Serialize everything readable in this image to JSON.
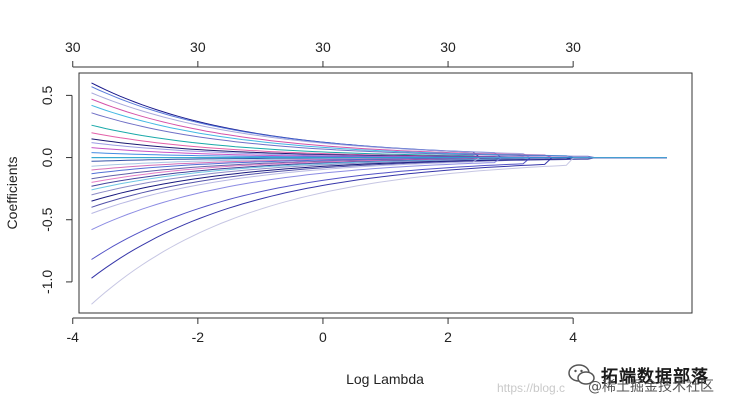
{
  "chart_data": {
    "type": "line",
    "xlabel": "Log Lambda",
    "ylabel": "Coefficients",
    "xlim": [
      -3.9,
      5.9
    ],
    "ylim": [
      -1.25,
      0.68
    ],
    "x_ticks": [
      "-4",
      "-2",
      "0",
      "2",
      "4"
    ],
    "x_tick_values": [
      -4,
      -2,
      0,
      2,
      4
    ],
    "y_ticks": [
      "-1.0",
      "-0.5",
      "0.0",
      "0.5"
    ],
    "y_tick_values": [
      -1.0,
      -0.5,
      0.0,
      0.5
    ],
    "top_ticks": [
      "30",
      "30",
      "30",
      "30",
      "30"
    ],
    "top_tick_values": [
      -4,
      -2,
      0,
      2,
      4
    ],
    "x_range": [
      -3.7,
      5.5
    ],
    "grid": false,
    "legend": "none",
    "series": [
      {
        "color": "#000080",
        "start": 0.6,
        "decay": 0.95
      },
      {
        "color": "#4a6fd8",
        "start": 0.57,
        "decay": 0.92
      },
      {
        "color": "#a0a0d8",
        "start": 0.52,
        "decay": 0.9
      },
      {
        "color": "#d040a0",
        "start": 0.47,
        "decay": 0.96
      },
      {
        "color": "#30b0e0",
        "start": 0.42,
        "decay": 0.98
      },
      {
        "color": "#6060c0",
        "start": 0.36,
        "decay": 1.0
      },
      {
        "color": "#00a0a0",
        "start": 0.26,
        "decay": 1.05
      },
      {
        "color": "#e050a0",
        "start": 0.2,
        "decay": 1.1
      },
      {
        "color": "#000060",
        "start": 0.15,
        "decay": 1.1
      },
      {
        "color": "#9090e0",
        "start": 0.12,
        "decay": 1.15
      },
      {
        "color": "#c040c0",
        "start": 0.08,
        "decay": 1.2
      },
      {
        "color": "#3080e0",
        "start": 0.04,
        "decay": 1.25
      },
      {
        "color": "#20c0c0",
        "start": 0.0,
        "decay": 1.3
      },
      {
        "color": "#2040a0",
        "start": -0.03,
        "decay": 1.2
      },
      {
        "color": "#a0c0e0",
        "start": -0.07,
        "decay": 1.15
      },
      {
        "color": "#d060b0",
        "start": -0.1,
        "decay": 1.1
      },
      {
        "color": "#4060d0",
        "start": -0.13,
        "decay": 1.1
      },
      {
        "color": "#5050a0",
        "start": -0.17,
        "decay": 1.05
      },
      {
        "color": "#e070c0",
        "start": -0.2,
        "decay": 1.05
      },
      {
        "color": "#303090",
        "start": -0.23,
        "decay": 1.0
      },
      {
        "color": "#60c0e0",
        "start": -0.26,
        "decay": 1.0
      },
      {
        "color": "#8080c0",
        "start": -0.3,
        "decay": 0.98
      },
      {
        "color": "#000070",
        "start": -0.35,
        "decay": 0.96
      },
      {
        "color": "#4040a0",
        "start": -0.4,
        "decay": 0.95
      },
      {
        "color": "#b0b0e0",
        "start": -0.45,
        "decay": 0.93
      },
      {
        "color": "#8080e0",
        "start": -0.58,
        "decay": 0.92
      },
      {
        "color": "#4040c0",
        "start": -0.82,
        "decay": 0.9
      },
      {
        "color": "#2020a0",
        "start": -0.97,
        "decay": 0.88
      },
      {
        "color": "#c0c0e0",
        "start": -1.18,
        "decay": 0.86
      },
      {
        "color": "#30a0d0",
        "start": 0.0,
        "decay": 2.0
      }
    ]
  },
  "watermark": {
    "brand": "拓端数据部落",
    "url": "https://blog.c",
    "community": "@稀土掘金技术社区"
  }
}
